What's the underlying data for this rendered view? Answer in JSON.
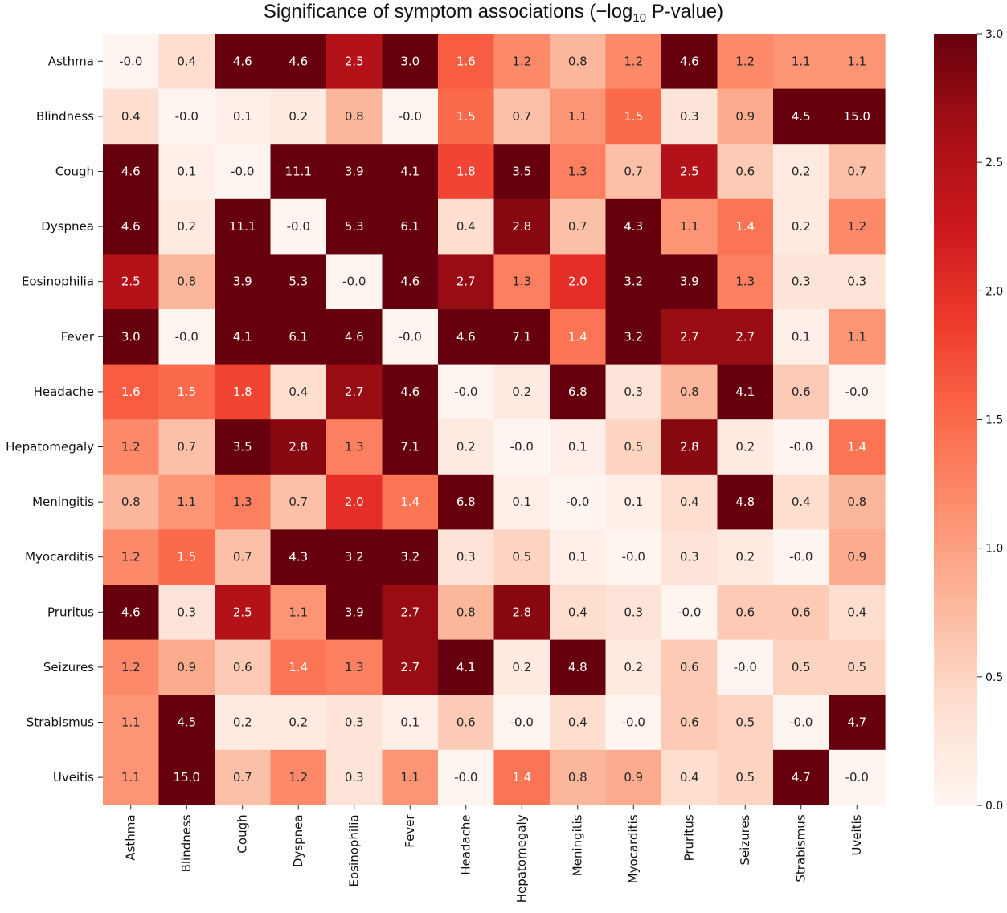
{
  "chart_data": {
    "type": "heatmap",
    "title": "Significance of symptom associations (−log",
    "title_sub": "10",
    "title_end": " P-value)",
    "rows": [
      "Asthma",
      "Blindness",
      "Cough",
      "Dyspnea",
      "Eosinophilia",
      "Fever",
      "Headache",
      "Hepatomegaly",
      "Meningitis",
      "Myocarditis",
      "Pruritus",
      "Seizures",
      "Strabismus",
      "Uveitis"
    ],
    "columns": [
      "Asthma",
      "Blindness",
      "Cough",
      "Dyspnea",
      "Eosinophilia",
      "Fever",
      "Headache",
      "Hepatomegaly",
      "Meningitis",
      "Myocarditis",
      "Pruritus",
      "Seizures",
      "Strabismus",
      "Uveitis"
    ],
    "labels": [
      [
        "-0.0",
        "0.4",
        "4.6",
        "4.6",
        "2.5",
        "3.0",
        "1.6",
        "1.2",
        "0.8",
        "1.2",
        "4.6",
        "1.2",
        "1.1",
        "1.1"
      ],
      [
        "0.4",
        "-0.0",
        "0.1",
        "0.2",
        "0.8",
        "-0.0",
        "1.5",
        "0.7",
        "1.1",
        "1.5",
        "0.3",
        "0.9",
        "4.5",
        "15.0"
      ],
      [
        "4.6",
        "0.1",
        "-0.0",
        "11.1",
        "3.9",
        "4.1",
        "1.8",
        "3.5",
        "1.3",
        "0.7",
        "2.5",
        "0.6",
        "0.2",
        "0.7"
      ],
      [
        "4.6",
        "0.2",
        "11.1",
        "-0.0",
        "5.3",
        "6.1",
        "0.4",
        "2.8",
        "0.7",
        "4.3",
        "1.1",
        "1.4",
        "0.2",
        "1.2"
      ],
      [
        "2.5",
        "0.8",
        "3.9",
        "5.3",
        "-0.0",
        "4.6",
        "2.7",
        "1.3",
        "2.0",
        "3.2",
        "3.9",
        "1.3",
        "0.3",
        "0.3"
      ],
      [
        "3.0",
        "-0.0",
        "4.1",
        "6.1",
        "4.6",
        "-0.0",
        "4.6",
        "7.1",
        "1.4",
        "3.2",
        "2.7",
        "2.7",
        "0.1",
        "1.1"
      ],
      [
        "1.6",
        "1.5",
        "1.8",
        "0.4",
        "2.7",
        "4.6",
        "-0.0",
        "0.2",
        "6.8",
        "0.3",
        "0.8",
        "4.1",
        "0.6",
        "-0.0"
      ],
      [
        "1.2",
        "0.7",
        "3.5",
        "2.8",
        "1.3",
        "7.1",
        "0.2",
        "-0.0",
        "0.1",
        "0.5",
        "2.8",
        "0.2",
        "-0.0",
        "1.4"
      ],
      [
        "0.8",
        "1.1",
        "1.3",
        "0.7",
        "2.0",
        "1.4",
        "6.8",
        "0.1",
        "-0.0",
        "0.1",
        "0.4",
        "4.8",
        "0.4",
        "0.8"
      ],
      [
        "1.2",
        "1.5",
        "0.7",
        "4.3",
        "3.2",
        "3.2",
        "0.3",
        "0.5",
        "0.1",
        "-0.0",
        "0.3",
        "0.2",
        "-0.0",
        "0.9"
      ],
      [
        "4.6",
        "0.3",
        "2.5",
        "1.1",
        "3.9",
        "2.7",
        "0.8",
        "2.8",
        "0.4",
        "0.3",
        "-0.0",
        "0.6",
        "0.6",
        "0.4"
      ],
      [
        "1.2",
        "0.9",
        "0.6",
        "1.4",
        "1.3",
        "2.7",
        "4.1",
        "0.2",
        "4.8",
        "0.2",
        "0.6",
        "-0.0",
        "0.5",
        "0.5"
      ],
      [
        "1.1",
        "4.5",
        "0.2",
        "0.2",
        "0.3",
        "0.1",
        "0.6",
        "-0.0",
        "0.4",
        "-0.0",
        "0.6",
        "0.5",
        "-0.0",
        "4.7"
      ],
      [
        "1.1",
        "15.0",
        "0.7",
        "1.2",
        "0.3",
        "1.1",
        "-0.0",
        "1.4",
        "0.8",
        "0.9",
        "0.4",
        "0.5",
        "4.7",
        "-0.0"
      ]
    ],
    "vmin": 0.0,
    "vmax": 3.0,
    "colormap": "Reds",
    "colorbar_ticks": [
      "0.0",
      "0.5",
      "1.0",
      "1.5",
      "2.0",
      "2.5",
      "3.0"
    ],
    "colorbar_tick_values": [
      0.0,
      0.5,
      1.0,
      1.5,
      2.0,
      2.5,
      3.0
    ],
    "legend": "right"
  }
}
